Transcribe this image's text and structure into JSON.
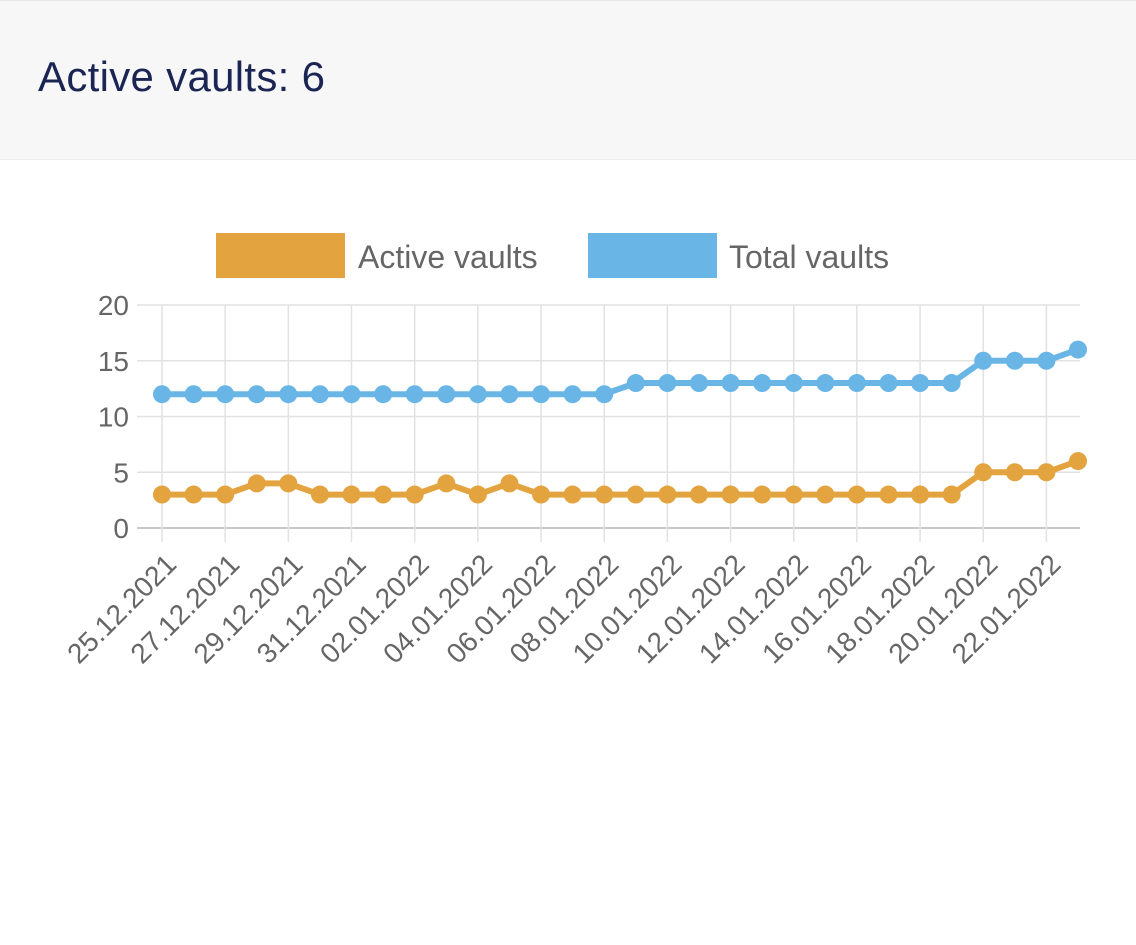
{
  "header": {
    "title": "Active vaults: 6"
  },
  "chart_data": {
    "type": "line",
    "title": "",
    "xlabel": "",
    "ylabel": "",
    "ylim": [
      0,
      20
    ],
    "y_ticks": [
      0,
      5,
      10,
      15,
      20
    ],
    "grid": true,
    "legend_position": "top-center",
    "x": [
      "25.12.2021",
      "26.12.2021",
      "27.12.2021",
      "28.12.2021",
      "29.12.2021",
      "30.12.2021",
      "31.12.2021",
      "01.01.2022",
      "02.01.2022",
      "03.01.2022",
      "04.01.2022",
      "05.01.2022",
      "06.01.2022",
      "07.01.2022",
      "08.01.2022",
      "09.01.2022",
      "10.01.2022",
      "11.01.2022",
      "12.01.2022",
      "13.01.2022",
      "14.01.2022",
      "15.01.2022",
      "16.01.2022",
      "17.01.2022",
      "18.01.2022",
      "19.01.2022",
      "20.01.2022",
      "21.01.2022",
      "22.01.2022",
      "23.01.2022"
    ],
    "x_tick_labels": [
      "25.12.2021",
      "27.12.2021",
      "29.12.2021",
      "31.12.2021",
      "02.01.2022",
      "04.01.2022",
      "06.01.2022",
      "08.01.2022",
      "10.01.2022",
      "12.01.2022",
      "14.01.2022",
      "16.01.2022",
      "18.01.2022",
      "20.01.2022",
      "22.01.2022"
    ],
    "series": [
      {
        "name": "Active vaults",
        "color": "#e3a33e",
        "values": [
          3,
          3,
          3,
          4,
          4,
          3,
          3,
          3,
          3,
          4,
          3,
          4,
          3,
          3,
          3,
          3,
          3,
          3,
          3,
          3,
          3,
          3,
          3,
          3,
          3,
          3,
          5,
          5,
          5,
          6
        ]
      },
      {
        "name": "Total vaults",
        "color": "#69b6e6",
        "values": [
          12,
          12,
          12,
          12,
          12,
          12,
          12,
          12,
          12,
          12,
          12,
          12,
          12,
          12,
          12,
          13,
          13,
          13,
          13,
          13,
          13,
          13,
          13,
          13,
          13,
          13,
          15,
          15,
          15,
          16
        ]
      }
    ]
  }
}
